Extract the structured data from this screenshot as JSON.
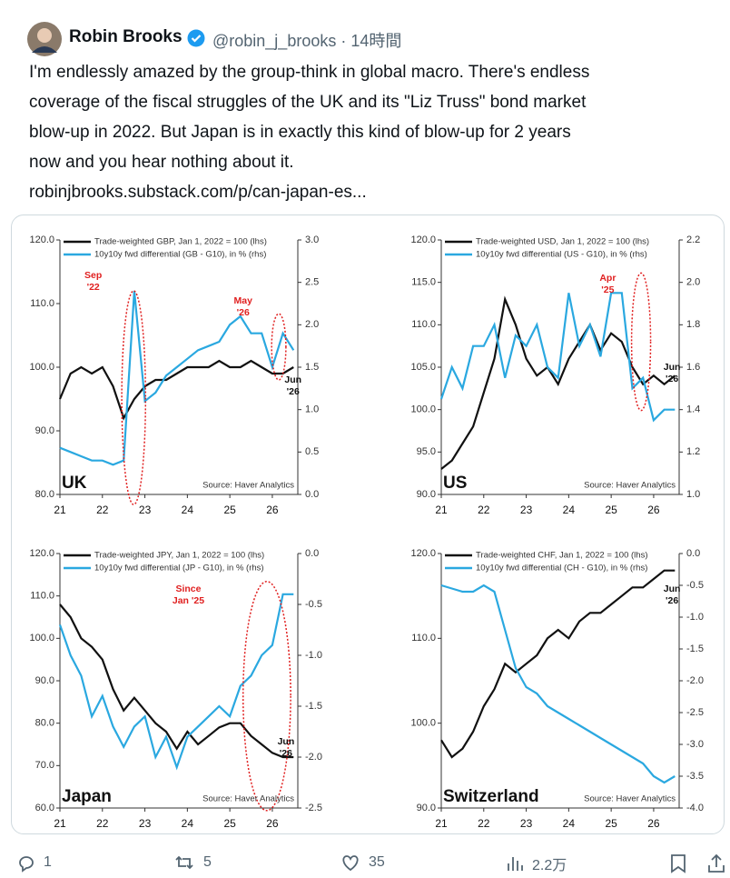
{
  "tweet": {
    "name": "Robin Brooks",
    "handle": "@robin_j_brooks · 14時間",
    "text": [
      "I'm endlessly amazed by the group-think in global macro. There's endless",
      "coverage of the fiscal struggles of the UK and its \"Liz Truss\" bond market",
      "blow-up in 2022. But Japan is in exactly this kind of blow-up for 2 years",
      "now and you hear nothing about it.",
      "robinjbrooks.substack.com/p/can-japan-es..."
    ]
  },
  "actions": {
    "replies": "1",
    "reposts": "5",
    "likes": "35",
    "views": "2.2万"
  },
  "chart_data": [
    {
      "type": "line",
      "country": "UK",
      "source": "Source: Haver Analytics",
      "x": [
        2021,
        2021.25,
        2021.5,
        2021.75,
        2022,
        2022.25,
        2022.5,
        2022.75,
        2023,
        2023.25,
        2023.5,
        2023.75,
        2024,
        2024.25,
        2024.5,
        2024.75,
        2025,
        2025.25,
        2025.5,
        2025.75,
        2026,
        2026.25,
        2026.5
      ],
      "series": [
        {
          "name": "Trade-weighted GBP, Jan 1, 2022 = 100 (lhs)",
          "color": "#111111",
          "axis": "y",
          "values": [
            95,
            99,
            100,
            99,
            100,
            97,
            92,
            95,
            97,
            98,
            98,
            99,
            100,
            100,
            100,
            101,
            100,
            100,
            101,
            100,
            99,
            99,
            100
          ]
        },
        {
          "name": "10y10y fwd differential (GB - G10), in % (rhs)",
          "color": "#2aa8e0",
          "axis": "y2",
          "values": [
            0.55,
            0.5,
            0.45,
            0.4,
            0.4,
            0.35,
            0.4,
            2.4,
            1.1,
            1.2,
            1.4,
            1.5,
            1.6,
            1.7,
            1.75,
            1.8,
            2.0,
            2.1,
            1.9,
            1.9,
            1.5,
            1.9,
            1.7
          ]
        }
      ],
      "xlim": [
        2021,
        2026.6
      ],
      "xticks": [
        {
          "value": 2021,
          "label": "21"
        },
        {
          "value": 2022,
          "label": "22"
        },
        {
          "value": 2023,
          "label": "23"
        },
        {
          "value": 2024,
          "label": "24"
        },
        {
          "value": 2025,
          "label": "25"
        },
        {
          "value": 2026,
          "label": "26"
        }
      ],
      "ylim": [
        80,
        120
      ],
      "yticks": [
        {
          "value": 80,
          "label": "80.0"
        },
        {
          "value": 90,
          "label": "90.0"
        },
        {
          "value": 100,
          "label": "100.0"
        },
        {
          "value": 110,
          "label": "110.0"
        },
        {
          "value": 120,
          "label": "120.0"
        }
      ],
      "y2lim": [
        0,
        3
      ],
      "y2ticks": [
        {
          "value": 0,
          "label": "0.0"
        },
        0.5,
        {
          "value": 1,
          "label": "1.0"
        },
        1.5,
        {
          "value": 2,
          "label": "2.0"
        },
        2.5,
        {
          "value": 3,
          "label": "3.0"
        }
      ],
      "annotations": [
        {
          "lines": [
            "Sep",
            "'22"
          ],
          "color": "#e02020"
        },
        {
          "lines": [
            "May",
            "'26"
          ],
          "color": "#e02020"
        },
        {
          "lines": [
            "Jun",
            "'26"
          ],
          "color": "#111111"
        }
      ]
    },
    {
      "type": "line",
      "country": "US",
      "source": "Source: Haver Analytics",
      "x": [
        2021,
        2021.25,
        2021.5,
        2021.75,
        2022,
        2022.25,
        2022.5,
        2022.75,
        2023,
        2023.25,
        2023.5,
        2023.75,
        2024,
        2024.25,
        2024.5,
        2024.75,
        2025,
        2025.25,
        2025.5,
        2025.75,
        2026,
        2026.25,
        2026.5
      ],
      "series": [
        {
          "name": "Trade-weighted USD, Jan 1, 2022 = 100 (lhs)",
          "color": "#111111",
          "axis": "y",
          "values": [
            93,
            94,
            96,
            98,
            102,
            106,
            113,
            110,
            106,
            104,
            105,
            103,
            106,
            108,
            110,
            107,
            109,
            108,
            105,
            103,
            104,
            103,
            104
          ]
        },
        {
          "name": "10y10y fwd differential (US - G10), in % (rhs)",
          "color": "#2aa8e0",
          "axis": "y2",
          "values": [
            1.45,
            1.6,
            1.5,
            1.7,
            1.7,
            1.8,
            1.55,
            1.75,
            1.7,
            1.8,
            1.6,
            1.55,
            1.95,
            1.7,
            1.8,
            1.65,
            1.95,
            1.95,
            1.5,
            1.55,
            1.35,
            1.4,
            1.4
          ]
        }
      ],
      "xlim": [
        2021,
        2026.6
      ],
      "xticks": [
        {
          "value": 2021,
          "label": "21"
        },
        {
          "value": 2022,
          "label": "22"
        },
        {
          "value": 2023,
          "label": "23"
        },
        {
          "value": 2024,
          "label": "24"
        },
        {
          "value": 2025,
          "label": "25"
        },
        {
          "value": 2026,
          "label": "26"
        }
      ],
      "ylim": [
        90,
        120
      ],
      "yticks": [
        {
          "value": 90,
          "label": "90.0"
        },
        {
          "value": 95,
          "label": "95.0"
        },
        {
          "value": 100,
          "label": "100.0"
        },
        {
          "value": 105,
          "label": "105.0"
        },
        {
          "value": 110,
          "label": "110.0"
        },
        {
          "value": 115,
          "label": "115.0"
        },
        {
          "value": 120,
          "label": "120.0"
        }
      ],
      "y2lim": [
        1,
        2.2
      ],
      "y2ticks": [
        {
          "value": 1,
          "label": "1.0"
        },
        1.2,
        1.4,
        1.6,
        1.8,
        {
          "value": 2,
          "label": "2.0"
        },
        2.2
      ],
      "annotations": [
        {
          "lines": [
            "Apr",
            "'25"
          ],
          "color": "#e02020"
        },
        {
          "lines": [
            "Jun",
            "'26"
          ],
          "color": "#111111"
        }
      ]
    },
    {
      "type": "line",
      "country": "Japan",
      "source": "Source: Haver Analytics",
      "x": [
        2021,
        2021.25,
        2021.5,
        2021.75,
        2022,
        2022.25,
        2022.5,
        2022.75,
        2023,
        2023.25,
        2023.5,
        2023.75,
        2024,
        2024.25,
        2024.5,
        2024.75,
        2025,
        2025.25,
        2025.5,
        2025.75,
        2026,
        2026.25,
        2026.5
      ],
      "series": [
        {
          "name": "Trade-weighted JPY, Jan 1, 2022 = 100 (lhs)",
          "color": "#111111",
          "axis": "y",
          "values": [
            108,
            105,
            100,
            98,
            95,
            88,
            83,
            86,
            83,
            80,
            78,
            74,
            78,
            75,
            77,
            79,
            80,
            80,
            77,
            75,
            73,
            72,
            72
          ]
        },
        {
          "name": "10y10y fwd differential (JP - G10), in % (rhs)",
          "color": "#2aa8e0",
          "axis": "y2",
          "values": [
            -0.7,
            -1.0,
            -1.2,
            -1.6,
            -1.4,
            -1.7,
            -1.9,
            -1.7,
            -1.6,
            -2.0,
            -1.8,
            -2.1,
            -1.8,
            -1.7,
            -1.6,
            -1.5,
            -1.6,
            -1.3,
            -1.2,
            -1.0,
            -0.9,
            -0.4,
            -0.4
          ]
        }
      ],
      "xlim": [
        2021,
        2026.6
      ],
      "xticks": [
        {
          "value": 2021,
          "label": "21"
        },
        {
          "value": 2022,
          "label": "22"
        },
        {
          "value": 2023,
          "label": "23"
        },
        {
          "value": 2024,
          "label": "24"
        },
        {
          "value": 2025,
          "label": "25"
        },
        {
          "value": 2026,
          "label": "26"
        }
      ],
      "ylim": [
        60,
        120
      ],
      "yticks": [
        {
          "value": 60,
          "label": "60.0"
        },
        {
          "value": 70,
          "label": "70.0"
        },
        {
          "value": 80,
          "label": "80.0"
        },
        {
          "value": 90,
          "label": "90.0"
        },
        {
          "value": 100,
          "label": "100.0"
        },
        {
          "value": 110,
          "label": "110.0"
        },
        {
          "value": 120,
          "label": "120.0"
        }
      ],
      "y2lim": [
        -2.5,
        0
      ],
      "y2ticks": [
        -2.5,
        {
          "value": -2,
          "label": "-2.0"
        },
        -1.5,
        {
          "value": -1,
          "label": "-1.0"
        },
        -0.5,
        {
          "value": 0,
          "label": "0.0"
        }
      ],
      "annotations": [
        {
          "lines": [
            "Since",
            "Jan '25"
          ],
          "color": "#e02020"
        },
        {
          "lines": [
            "Jun",
            "'26"
          ],
          "color": "#111111"
        }
      ]
    },
    {
      "type": "line",
      "country": "Switzerland",
      "source": "Source: Haver Analytics",
      "x": [
        2021,
        2021.25,
        2021.5,
        2021.75,
        2022,
        2022.25,
        2022.5,
        2022.75,
        2023,
        2023.25,
        2023.5,
        2023.75,
        2024,
        2024.25,
        2024.5,
        2024.75,
        2025,
        2025.25,
        2025.5,
        2025.75,
        2026,
        2026.25,
        2026.5
      ],
      "series": [
        {
          "name": "Trade-weighted CHF, Jan 1, 2022 = 100 (lhs)",
          "color": "#111111",
          "axis": "y",
          "values": [
            98,
            96,
            97,
            99,
            102,
            104,
            107,
            106,
            107,
            108,
            110,
            111,
            110,
            112,
            113,
            113,
            114,
            115,
            116,
            116,
            117,
            118,
            118
          ]
        },
        {
          "name": "10y10y fwd differential (CH - G10), in % (rhs)",
          "color": "#2aa8e0",
          "axis": "y2",
          "values": [
            -0.5,
            -0.55,
            -0.6,
            -0.6,
            -0.5,
            -0.6,
            -1.2,
            -1.8,
            -2.1,
            -2.2,
            -2.4,
            -2.5,
            -2.6,
            -2.7,
            -2.8,
            -2.9,
            -3.0,
            -3.1,
            -3.2,
            -3.3,
            -3.5,
            -3.6,
            -3.5
          ]
        }
      ],
      "xlim": [
        2021,
        2026.6
      ],
      "xticks": [
        {
          "value": 2021,
          "label": "21"
        },
        {
          "value": 2022,
          "label": "22"
        },
        {
          "value": 2023,
          "label": "23"
        },
        {
          "value": 2024,
          "label": "24"
        },
        {
          "value": 2025,
          "label": "25"
        },
        {
          "value": 2026,
          "label": "26"
        }
      ],
      "ylim": [
        90,
        120
      ],
      "yticks": [
        {
          "value": 90,
          "label": "90.0"
        },
        {
          "value": 100,
          "label": "100.0"
        },
        {
          "value": 110,
          "label": "110.0"
        },
        {
          "value": 120,
          "label": "120.0"
        }
      ],
      "y2lim": [
        -4,
        0
      ],
      "y2ticks": [
        {
          "value": -4,
          "label": "-4.0"
        },
        -3.5,
        {
          "value": -3,
          "label": "-3.0"
        },
        -2.5,
        {
          "value": -2,
          "label": "-2.0"
        },
        -1.5,
        {
          "value": -1,
          "label": "-1.0"
        },
        -0.5,
        {
          "value": 0,
          "label": "0.0"
        }
      ],
      "annotations": [
        {
          "lines": [
            "Jun",
            "'26"
          ],
          "color": "#111111"
        }
      ]
    }
  ]
}
